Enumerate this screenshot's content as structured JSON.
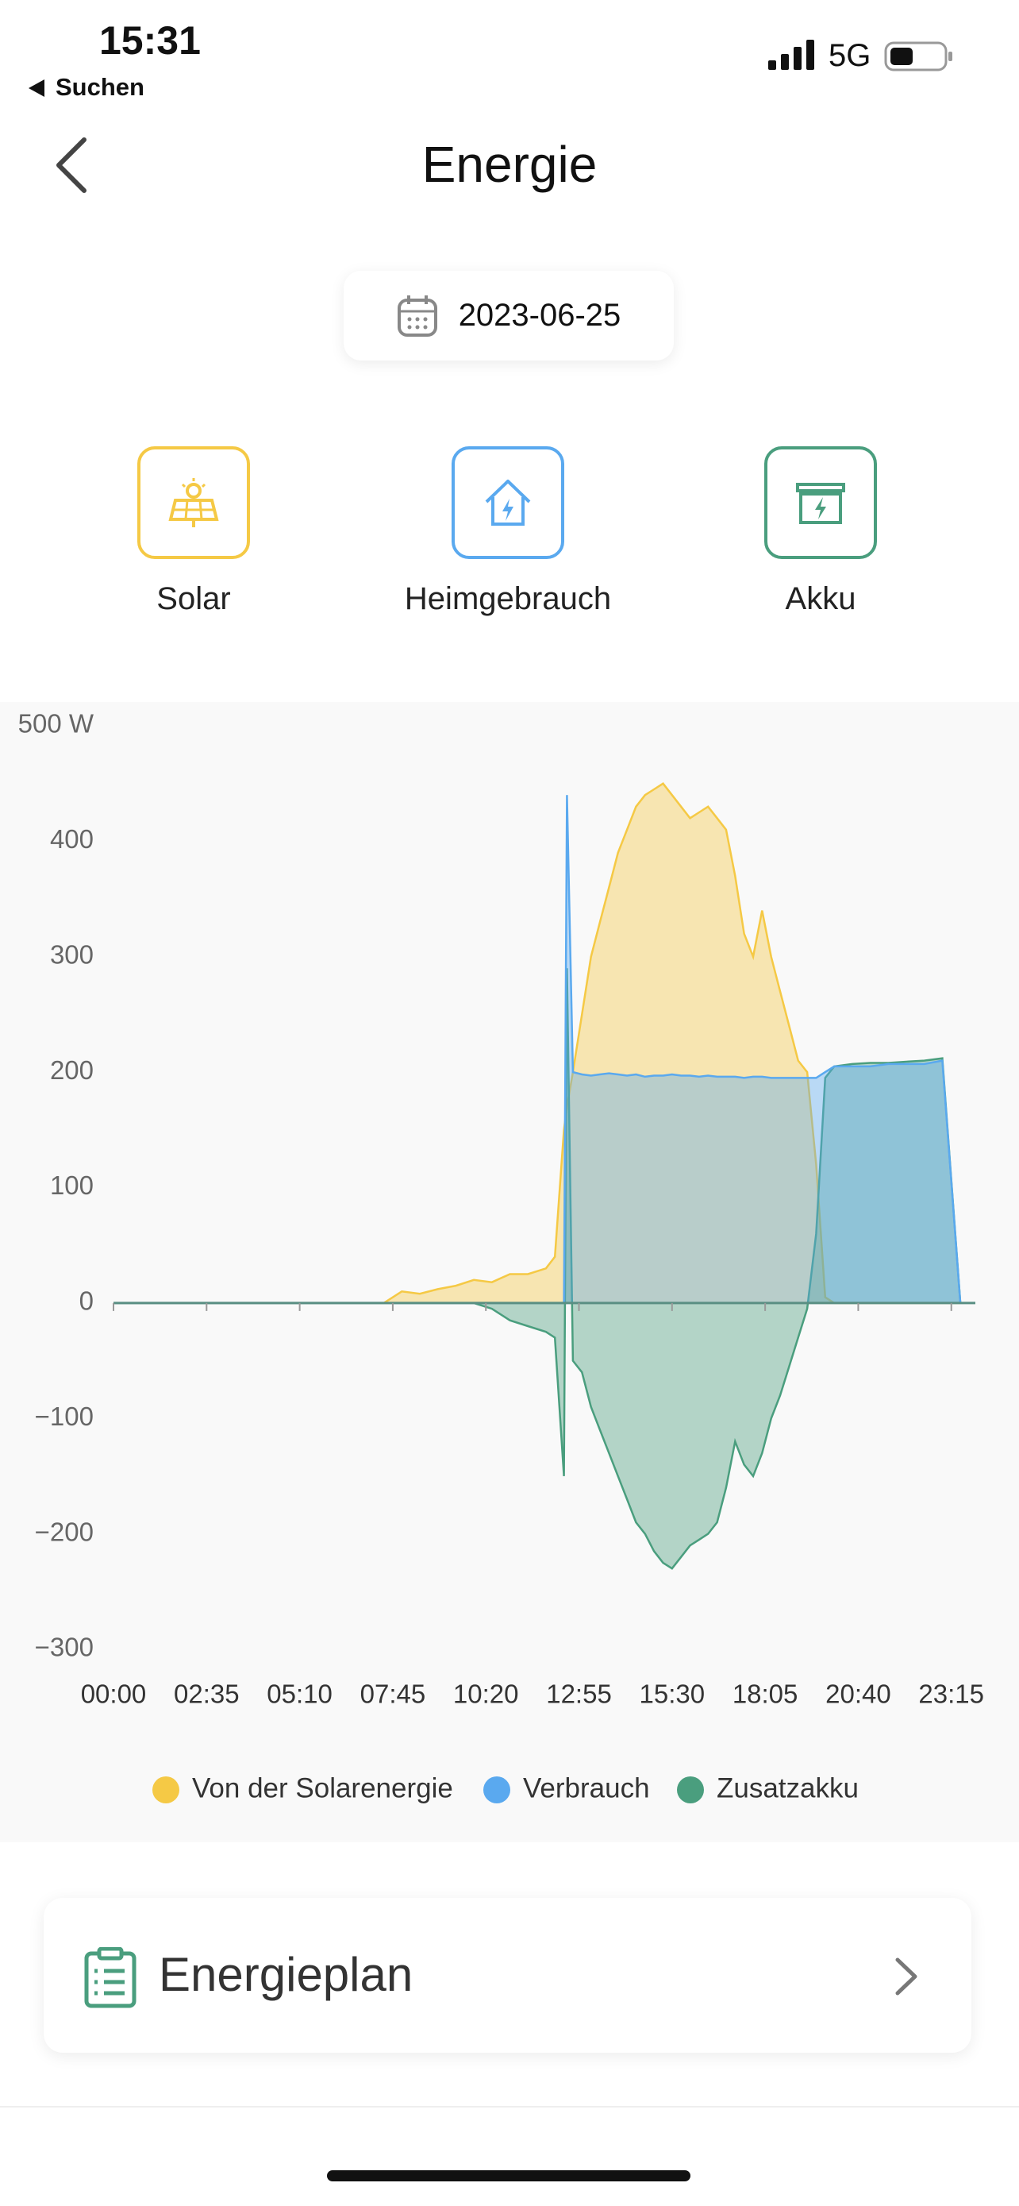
{
  "status": {
    "time": "15:31",
    "back_app": "Suchen",
    "network": "5G"
  },
  "header": {
    "title": "Energie"
  },
  "date": "2023-06-25",
  "tabs": [
    "Solar",
    "Heimgebrauch",
    "Akku"
  ],
  "chart_data": {
    "type": "area",
    "x": [
      0,
      60,
      120,
      180,
      240,
      300,
      360,
      420,
      450,
      480,
      510,
      540,
      570,
      600,
      630,
      660,
      690,
      720,
      735,
      750,
      755,
      765,
      780,
      795,
      810,
      825,
      840,
      855,
      870,
      885,
      900,
      915,
      930,
      945,
      960,
      975,
      990,
      1005,
      1020,
      1035,
      1050,
      1065,
      1080,
      1095,
      1110,
      1125,
      1140,
      1155,
      1170,
      1185,
      1200,
      1230,
      1260,
      1290,
      1320,
      1350,
      1380,
      1410
    ],
    "xlim": [
      0,
      1435
    ],
    "xticks": [
      {
        "value": 0,
        "label": "00:00"
      },
      {
        "value": 155,
        "label": "02:35"
      },
      {
        "value": 310,
        "label": "05:10"
      },
      {
        "value": 465,
        "label": "07:45"
      },
      {
        "value": 620,
        "label": "10:20"
      },
      {
        "value": 775,
        "label": "12:55"
      },
      {
        "value": 930,
        "label": "15:30"
      },
      {
        "value": 1085,
        "label": "18:05"
      },
      {
        "value": 1240,
        "label": "20:40"
      },
      {
        "value": 1395,
        "label": "23:15"
      }
    ],
    "ylim": [
      -300,
      500
    ],
    "yticks": [
      {
        "value": -300,
        "label": "−300"
      },
      {
        "value": -200,
        "label": "−200"
      },
      {
        "value": -100,
        "label": "−100"
      },
      0,
      100,
      200,
      300,
      400,
      {
        "value": 500,
        "label": "500 W"
      }
    ],
    "grid": false,
    "series": [
      {
        "name": "Von der Solarenergie",
        "color": "#f5c945",
        "values": [
          0,
          0,
          0,
          0,
          0,
          0,
          0,
          0,
          0,
          10,
          8,
          12,
          15,
          20,
          18,
          25,
          25,
          30,
          40,
          150,
          170,
          200,
          250,
          300,
          330,
          360,
          390,
          410,
          430,
          440,
          445,
          450,
          440,
          430,
          420,
          425,
          430,
          420,
          410,
          370,
          320,
          300,
          340,
          300,
          270,
          240,
          210,
          200,
          120,
          5,
          0,
          0,
          0,
          0,
          0,
          0,
          0,
          0
        ]
      },
      {
        "name": "Verbrauch",
        "color": "#5aa9ef",
        "values": [
          0,
          0,
          0,
          0,
          0,
          0,
          0,
          0,
          0,
          0,
          0,
          0,
          0,
          0,
          0,
          0,
          0,
          0,
          0,
          0,
          440,
          200,
          198,
          197,
          198,
          199,
          198,
          197,
          198,
          196,
          197,
          197,
          198,
          197,
          197,
          196,
          197,
          196,
          196,
          196,
          195,
          196,
          196,
          195,
          195,
          195,
          195,
          195,
          195,
          200,
          205,
          205,
          205,
          207,
          207,
          207,
          210,
          0
        ]
      },
      {
        "name": "Zusatzakku",
        "color": "#4a9e7e",
        "values": [
          0,
          0,
          0,
          0,
          0,
          0,
          0,
          0,
          0,
          0,
          0,
          0,
          0,
          0,
          -5,
          -15,
          -20,
          -25,
          -30,
          -150,
          290,
          -50,
          -60,
          -90,
          -110,
          -130,
          -150,
          -170,
          -190,
          -200,
          -215,
          -225,
          -230,
          -220,
          -210,
          -205,
          -200,
          -190,
          -160,
          -120,
          -140,
          -150,
          -130,
          -100,
          -80,
          -55,
          -30,
          -5,
          60,
          195,
          205,
          207,
          208,
          208,
          209,
          210,
          212,
          0
        ]
      }
    ]
  },
  "card": {
    "title": "Energieplan"
  }
}
